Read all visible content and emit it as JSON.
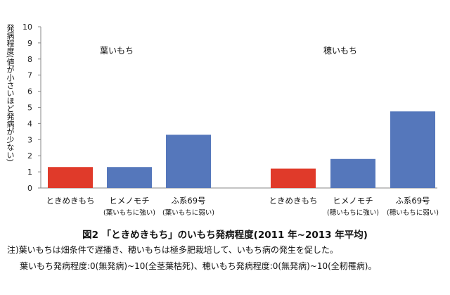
{
  "chart_data": {
    "type": "bar",
    "ylabel": "発病程度(値が小さいほど発病が少ない)",
    "ylim": [
      0,
      10
    ],
    "yticks": [
      "0",
      "1",
      "2",
      "3",
      "4",
      "5",
      "6",
      "7",
      "8",
      "9",
      "10"
    ],
    "grid": false,
    "groups": [
      {
        "label": "葉いもち",
        "bars": [
          {
            "category": "ときめきもち",
            "sub": "",
            "value": 1.3,
            "color": "#e03a2a"
          },
          {
            "category": "ヒメノモチ",
            "sub": "(葉いもちに強い)",
            "value": 1.3,
            "color": "#5577bb"
          },
          {
            "category": "ふ系69号",
            "sub": "(葉いもちに弱い)",
            "value": 3.3,
            "color": "#5577bb"
          }
        ]
      },
      {
        "label": "穂いもち",
        "bars": [
          {
            "category": "ときめきもち",
            "sub": "",
            "value": 1.2,
            "color": "#e03a2a"
          },
          {
            "category": "ヒメノモチ",
            "sub": "(穂いもちに強い)",
            "value": 1.8,
            "color": "#5577bb"
          },
          {
            "category": "ふ系69号",
            "sub": "(穂いもちに弱い)",
            "value": 4.75,
            "color": "#5577bb"
          }
        ]
      }
    ]
  },
  "caption": "図2 「ときめきもち」のいもち発病程度(2011 年~2013 年平均)",
  "notes": {
    "line1": "注)葉いもちは畑条件で遅播き、穂いもちは極多肥栽培して、いもち病の発生を促した。",
    "line2": "葉いもち発病程度:0(無発病)~10(全茎葉枯死)、穂いもち発病程度:0(無発病)~10(全籾罹病)。"
  }
}
